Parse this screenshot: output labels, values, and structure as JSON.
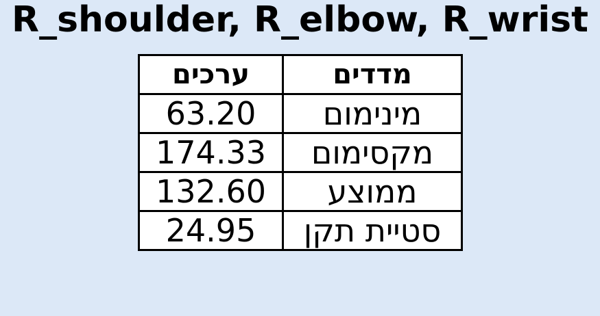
{
  "chart_data": {
    "type": "table",
    "title": "R_shoulder, R_elbow, R_wrist",
    "columns": [
      "ערכים",
      "מדדים"
    ],
    "rows": [
      {
        "value": "63.20",
        "measure": "מינימום"
      },
      {
        "value": "174.33",
        "measure": "מקסימום"
      },
      {
        "value": "132.60",
        "measure": "ממוצע"
      },
      {
        "value": "24.95",
        "measure": "סטיית תקן"
      }
    ]
  }
}
